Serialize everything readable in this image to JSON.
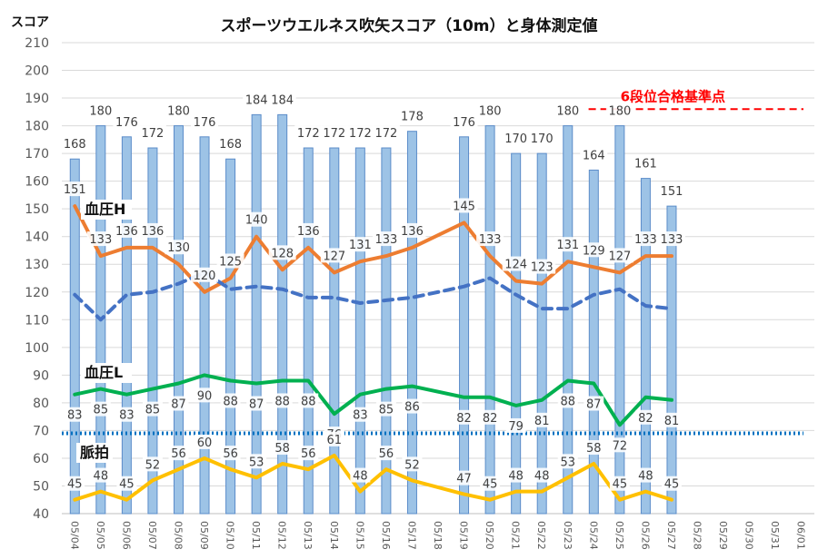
{
  "chart_data": {
    "type": "bar",
    "title": "スポーツウエルネス吹矢スコア（10m）と身体測定値",
    "ylabel": "スコア",
    "ylim": [
      40,
      210
    ],
    "yticks": [
      40,
      50,
      60,
      70,
      80,
      90,
      100,
      110,
      120,
      130,
      140,
      150,
      160,
      170,
      180,
      190,
      200,
      210
    ],
    "grid": true,
    "categories": [
      "05/04",
      "05/05",
      "05/06",
      "05/07",
      "05/08",
      "05/09",
      "05/10",
      "05/11",
      "05/12",
      "05/13",
      "05/14",
      "05/15",
      "05/16",
      "05/17",
      "05/18",
      "05/19",
      "05/20",
      "05/21",
      "05/22",
      "05/23",
      "05/24",
      "05/25",
      "05/26",
      "05/27",
      "05/28",
      "05/29",
      "05/30",
      "05/31",
      "06/01"
    ],
    "series": [
      {
        "name": "スコア",
        "kind": "bar",
        "color": "#9dc3e6",
        "values": [
          168,
          180,
          176,
          172,
          180,
          176,
          168,
          184,
          184,
          172,
          172,
          172,
          172,
          178,
          null,
          176,
          180,
          170,
          170,
          180,
          164,
          180,
          161,
          151,
          null,
          null,
          null,
          null,
          null
        ],
        "labels": [
          "168",
          "180",
          "176",
          "172",
          "180",
          "176",
          "168",
          "184",
          "184",
          "172",
          "172",
          "172",
          "172",
          "178",
          "",
          "176",
          "180",
          "170",
          "170",
          "180",
          "164",
          "180",
          "161",
          "151",
          "",
          "",
          "",
          "",
          ""
        ]
      },
      {
        "name": "血圧H",
        "kind": "line",
        "color": "#ed7d31",
        "values": [
          151,
          133,
          136,
          136,
          130,
          120,
          125,
          140,
          128,
          136,
          127,
          131,
          133,
          136,
          null,
          145,
          133,
          124,
          123,
          131,
          129,
          127,
          133,
          133,
          null,
          null,
          null,
          null,
          null
        ]
      },
      {
        "name": "",
        "kind": "dashed",
        "color": "#4472c4",
        "values": [
          119,
          110,
          119,
          120,
          123,
          127,
          121,
          122,
          121,
          118,
          118,
          116,
          117,
          118,
          null,
          122,
          125,
          119,
          114,
          114,
          119,
          121,
          115,
          114,
          null,
          null,
          null,
          null,
          null
        ]
      },
      {
        "name": "血圧L",
        "kind": "line",
        "color": "#00b050",
        "values": [
          83,
          85,
          83,
          85,
          87,
          90,
          88,
          87,
          88,
          88,
          76,
          83,
          85,
          86,
          null,
          82,
          82,
          79,
          81,
          88,
          87,
          72,
          82,
          81,
          null,
          null,
          null,
          null,
          null
        ]
      },
      {
        "name": "脈拍",
        "kind": "line",
        "color": "#ffc000",
        "values": [
          45,
          48,
          45,
          52,
          56,
          60,
          56,
          53,
          58,
          56,
          61,
          48,
          56,
          52,
          null,
          47,
          45,
          48,
          48,
          53,
          58,
          45,
          48,
          45,
          null,
          null,
          null,
          null,
          null
        ]
      }
    ],
    "reference_lines": [
      {
        "value": 186,
        "color": "#ff0000",
        "style": "dashed",
        "label": "6段位合格基準点",
        "from_category": "05/24"
      },
      {
        "value": 69,
        "color": "#0070c0",
        "style": "dotted",
        "label": ""
      }
    ],
    "series_annotations": [
      {
        "text": "血圧H",
        "series": 1
      },
      {
        "text": "血圧L",
        "series": 3
      },
      {
        "text": "脈拍",
        "series": 4
      }
    ]
  }
}
